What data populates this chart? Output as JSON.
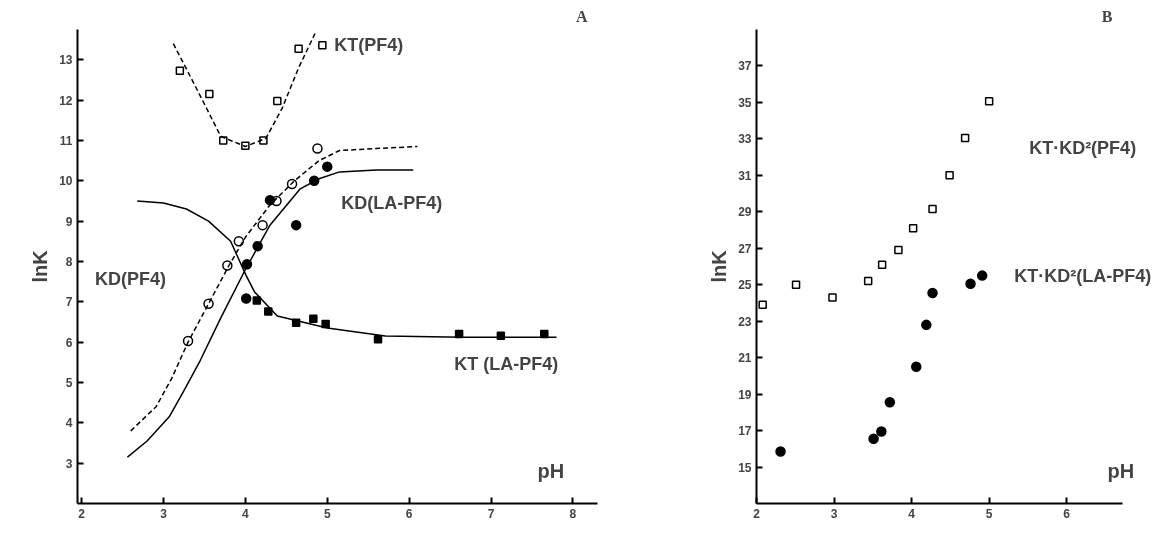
{
  "chart_data": [
    {
      "type": "scatter",
      "title": "A",
      "xlabel": "pH",
      "ylabel": "lnK",
      "xlim": [
        1.95,
        8.3
      ],
      "ylim": [
        2,
        13.75
      ],
      "xticks": [
        2,
        3,
        4,
        5,
        6,
        7,
        8
      ],
      "yticks": [
        3,
        4,
        5,
        6,
        7,
        8,
        9,
        10,
        11,
        12,
        13
      ],
      "grid": false,
      "series": [
        {
          "name": "KT(PF4)",
          "marker": "square",
          "color": "#000000",
          "x": [
            3.2,
            3.56,
            3.73,
            4.0,
            4.22,
            4.39,
            4.65,
            4.94
          ],
          "values": [
            12.73,
            12.15,
            11.0,
            10.87,
            11.0,
            11.98,
            13.27,
            13.36
          ]
        },
        {
          "type": "line",
          "line_style": "dashed",
          "color": "#000000",
          "x": [
            3.12,
            3.4,
            3.7,
            4.0,
            4.25,
            4.45,
            4.65,
            4.85
          ],
          "values": [
            13.4,
            12.3,
            11.1,
            10.85,
            11.05,
            11.8,
            12.8,
            13.65
          ]
        },
        {
          "name": "KD(PF4)",
          "marker": "circle",
          "color": "#000000",
          "x": [
            3.3,
            3.55,
            3.78,
            3.92,
            4.21,
            4.38,
            4.57,
            4.88
          ],
          "values": [
            6.03,
            6.95,
            7.9,
            8.5,
            8.9,
            9.5,
            9.92,
            10.8
          ]
        },
        {
          "type": "line",
          "line_style": "dashed",
          "color": "#000000",
          "x": [
            2.6,
            2.91,
            3.1,
            3.3,
            3.55,
            3.8,
            4.0,
            4.3,
            4.6,
            4.9,
            5.15,
            5.6,
            6.1
          ],
          "values": [
            3.8,
            4.4,
            5.1,
            6.0,
            6.95,
            7.9,
            8.6,
            9.4,
            10.0,
            10.5,
            10.75,
            10.8,
            10.85
          ]
        },
        {
          "name": "KD(LA-PF4)",
          "marker": "circle",
          "color": "#000000",
          "x": [
            4.01,
            4.02,
            4.15,
            4.3,
            4.62,
            4.84,
            5.0
          ],
          "values": [
            7.08,
            7.93,
            8.38,
            9.52,
            8.9,
            10.0,
            10.35
          ]
        },
        {
          "type": "line",
          "line_style": "solid",
          "color": "#000000",
          "x": [
            2.56,
            2.8,
            3.07,
            3.25,
            3.45,
            3.7,
            4.0,
            4.3,
            4.67,
            4.9,
            5.15,
            5.6,
            6.05
          ],
          "values": [
            3.15,
            3.55,
            4.15,
            4.8,
            5.55,
            6.6,
            7.8,
            8.9,
            9.8,
            10.05,
            10.22,
            10.27,
            10.27
          ]
        },
        {
          "name": "KT (LA-PF4)",
          "marker": "square",
          "color": "#000000",
          "x": [
            4.14,
            4.28,
            4.62,
            4.83,
            4.98,
            5.62,
            6.61,
            7.12,
            7.65
          ],
          "values": [
            7.03,
            6.76,
            6.48,
            6.58,
            6.45,
            6.07,
            6.2,
            6.16,
            6.2
          ]
        },
        {
          "type": "line",
          "line_style": "solid",
          "color": "#000000",
          "x": [
            2.68,
            3.0,
            3.28,
            3.55,
            3.82,
            4.01,
            4.11,
            4.39,
            5.0,
            5.71,
            6.64,
            7.8
          ],
          "values": [
            9.5,
            9.45,
            9.3,
            9.0,
            8.5,
            7.65,
            7.25,
            6.65,
            6.35,
            6.15,
            6.12,
            6.12
          ]
        }
      ]
    },
    {
      "type": "scatter",
      "title": "B",
      "xlabel": "pH",
      "ylabel": "lnK",
      "xlim": [
        2,
        6.72
      ],
      "ylim": [
        13,
        39
      ],
      "xticks": [
        2,
        3,
        4,
        5,
        6
      ],
      "yticks": [
        15,
        17,
        19,
        21,
        23,
        25,
        27,
        29,
        31,
        33,
        35,
        37
      ],
      "grid": false,
      "series": [
        {
          "name": "KT·KD²(PF4)",
          "marker": "square",
          "color": "#000000",
          "x": [
            2.08,
            2.51,
            2.98,
            3.44,
            3.62,
            3.83,
            4.02,
            4.27,
            4.49,
            4.69,
            5.0
          ],
          "values": [
            23.9,
            25.0,
            24.3,
            25.2,
            26.1,
            26.9,
            28.1,
            29.15,
            31.0,
            33.05,
            35.07
          ]
        },
        {
          "name": "KT·KD²(LA-PF4)",
          "marker": "circle",
          "color": "#000000",
          "x": [
            2.31,
            3.51,
            3.61,
            3.72,
            4.06,
            4.19,
            4.27,
            4.76,
            4.91
          ],
          "values": [
            15.85,
            16.55,
            16.95,
            18.55,
            20.5,
            22.8,
            24.55,
            25.05,
            25.5
          ]
        }
      ]
    }
  ]
}
